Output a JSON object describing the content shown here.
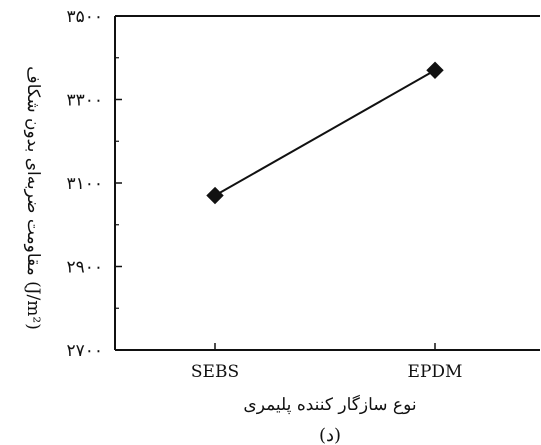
{
  "chart_data": {
    "type": "line",
    "categories": [
      "SEBS",
      "EPDM"
    ],
    "series": [
      {
        "values": [
          3070,
          3370
        ],
        "color": "#111111",
        "marker": "diamond"
      }
    ],
    "ylim": [
      2700,
      3500
    ],
    "yticks": [
      2700,
      2900,
      3100,
      3300,
      3500
    ],
    "ytick_labels": [
      "۲۷۰۰",
      "۲۹۰۰",
      "۳۱۰۰",
      "۳۳۰۰",
      "۳۵۰۰"
    ],
    "xlabel": "نوع سازگار کننده پلیمری",
    "ylabel": "مقاومت ضربه‌ای بدون شکاف (J/m²)",
    "caption": "(د)",
    "grid": false
  }
}
